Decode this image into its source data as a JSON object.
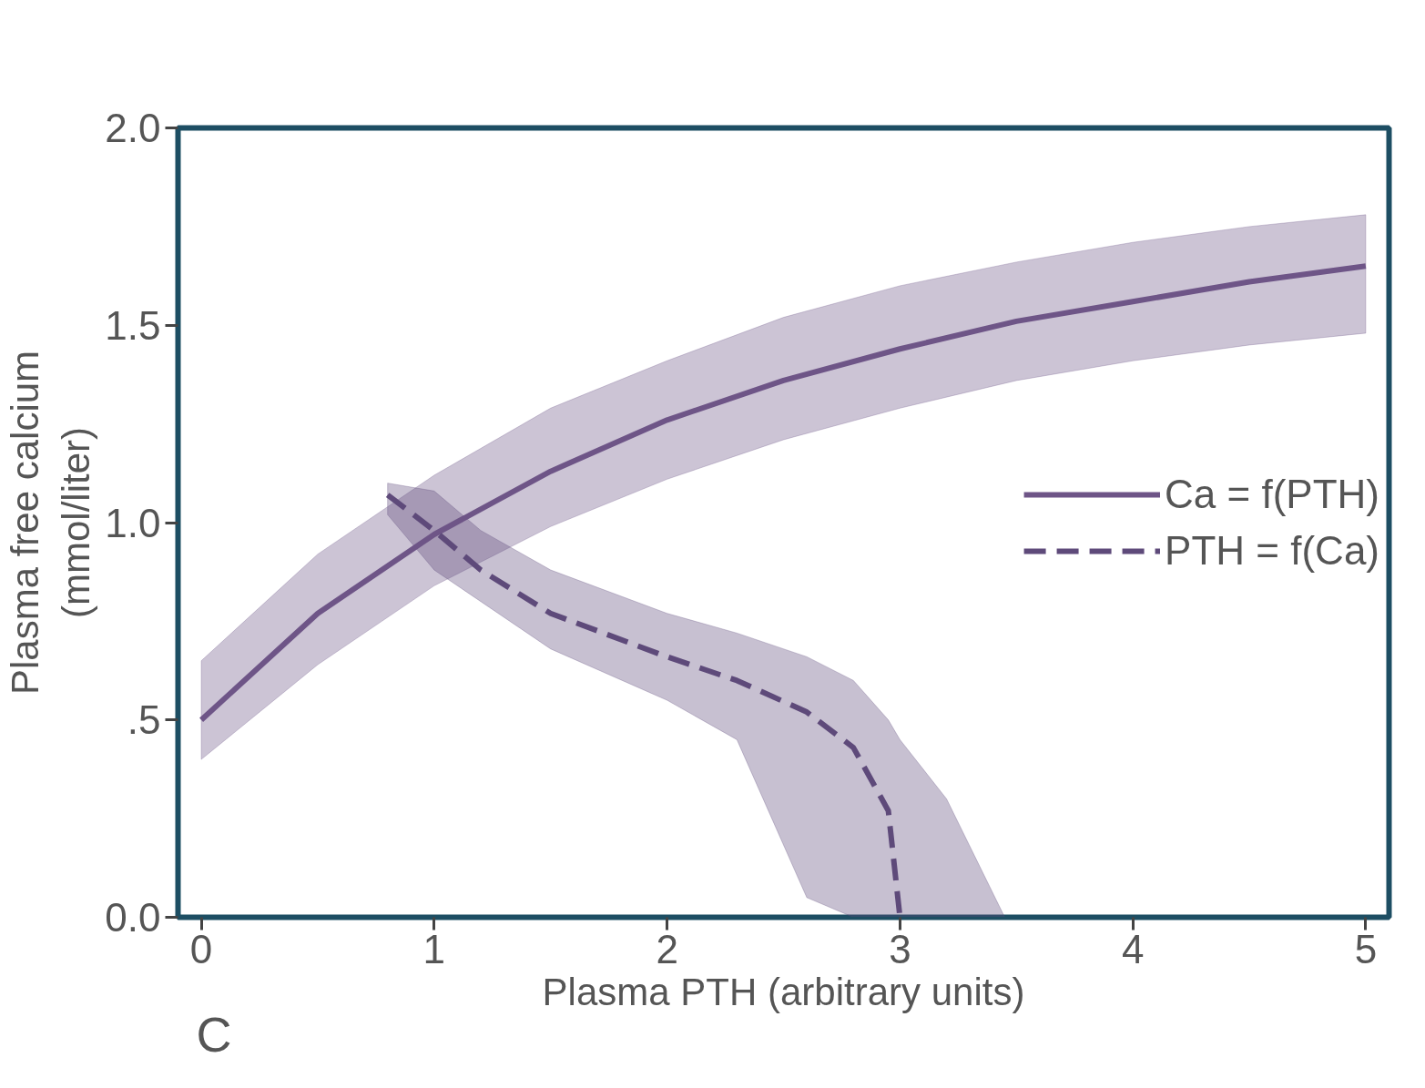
{
  "chart_data": {
    "type": "line",
    "xlabel": "Plasma PTH (arbitrary units)",
    "ylabel": "Plasma free calcium\n(mmol/liter)",
    "xlim": [
      -0.1,
      5.1
    ],
    "ylim": [
      0.0,
      2.0
    ],
    "xticks": [
      0,
      1,
      2,
      3,
      4,
      5
    ],
    "yticks": [
      {
        "value": 0.0,
        "label": "0.0"
      },
      {
        "value": 0.5,
        "label": ".5"
      },
      {
        "value": 1.0,
        "label": "1.0"
      },
      {
        "value": 1.5,
        "label": "1.5"
      },
      {
        "value": 2.0,
        "label": "2.0"
      }
    ],
    "grid": false,
    "legend": "right",
    "marker": "none",
    "annotations": [
      "C"
    ],
    "series": [
      {
        "name": "Ca = f(PTH)",
        "color": "#6e5587",
        "line_style": "solid",
        "x": [
          0,
          0.5,
          1,
          1.5,
          2,
          2.5,
          3,
          3.5,
          4,
          4.5,
          5
        ],
        "values": [
          0.5,
          0.77,
          0.97,
          1.13,
          1.26,
          1.36,
          1.44,
          1.51,
          1.56,
          1.61,
          1.65
        ],
        "lower": [
          0.4,
          0.64,
          0.84,
          0.99,
          1.11,
          1.21,
          1.29,
          1.36,
          1.41,
          1.45,
          1.48
        ],
        "upper": [
          0.65,
          0.92,
          1.12,
          1.29,
          1.41,
          1.52,
          1.6,
          1.66,
          1.71,
          1.75,
          1.78
        ]
      },
      {
        "name": "PTH = f(Ca)",
        "color": "#5e4a7a",
        "line_style": "dashed",
        "x": [
          0.8,
          1.0,
          1.2,
          1.5,
          2.0,
          2.3,
          2.6,
          2.8,
          2.95,
          3.0,
          3.2,
          3.45
        ],
        "values": [
          1.07,
          0.98,
          0.88,
          0.77,
          0.66,
          0.6,
          0.52,
          0.43,
          0.27,
          0.0,
          null,
          null
        ],
        "lower": [
          1.02,
          0.88,
          0.8,
          0.68,
          0.55,
          0.45,
          0.05,
          0.0,
          0.0,
          0.0,
          0.0,
          0.0
        ],
        "upper": [
          1.1,
          1.08,
          0.98,
          0.88,
          0.77,
          0.72,
          0.66,
          0.6,
          0.5,
          0.45,
          0.3,
          0.0
        ]
      }
    ]
  }
}
